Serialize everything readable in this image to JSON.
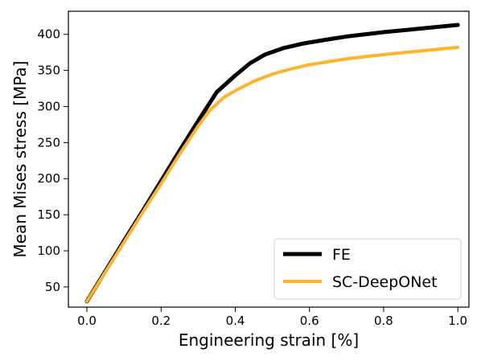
{
  "chart_data": {
    "type": "line",
    "title": "",
    "xlabel": "Engineering strain [%]",
    "ylabel": "Mean Mises stress [MPa]",
    "xlim": [
      -0.05,
      1.03
    ],
    "ylim": [
      22,
      432
    ],
    "xticks": [
      0.0,
      0.2,
      0.4,
      0.6,
      0.8,
      1.0
    ],
    "xtick_labels": [
      "0.0",
      "0.2",
      "0.4",
      "0.6",
      "0.8",
      "1.0"
    ],
    "yticks": [
      50,
      100,
      150,
      200,
      250,
      300,
      350,
      400
    ],
    "ytick_labels": [
      "50",
      "100",
      "150",
      "200",
      "250",
      "300",
      "350",
      "400"
    ],
    "grid": false,
    "legend": "lower-right",
    "series": [
      {
        "name": "FE",
        "color": "#000000",
        "x": [
          0.0,
          0.05,
          0.1,
          0.15,
          0.2,
          0.25,
          0.3,
          0.35,
          0.4,
          0.44,
          0.48,
          0.53,
          0.58,
          0.65,
          0.7,
          0.8,
          0.9,
          1.0
        ],
        "y": [
          30,
          72,
          114,
          155,
          197,
          239,
          280,
          320,
          343,
          360,
          372,
          381,
          387,
          393,
          397,
          403,
          408,
          413
        ]
      },
      {
        "name": "SC-DeepONet",
        "color": "#FDB32B",
        "x": [
          0.0,
          0.05,
          0.1,
          0.15,
          0.2,
          0.25,
          0.3,
          0.33,
          0.37,
          0.4,
          0.45,
          0.5,
          0.55,
          0.6,
          0.7,
          0.8,
          0.9,
          1.0
        ],
        "y": [
          30,
          71,
          112,
          153,
          193,
          234,
          273,
          294,
          313,
          322,
          335,
          345,
          352,
          358,
          366,
          372,
          377,
          382
        ]
      }
    ]
  }
}
